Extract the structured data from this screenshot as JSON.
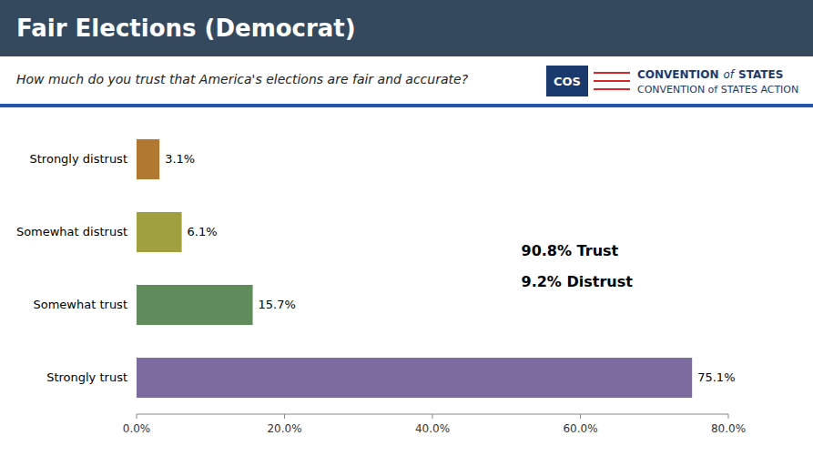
{
  "chart_data": {
    "type": "bar",
    "orientation": "horizontal",
    "title": "Fair Elections (Democrat)",
    "subtitle": "How much do you trust that America's elections are fair and accurate?",
    "categories": [
      "Strongly trust",
      "Somewhat trust",
      "Somewhat distrust",
      "Strongly distrust"
    ],
    "values": [
      75.1,
      15.7,
      6.1,
      3.1
    ],
    "value_labels": [
      "75.1%",
      "15.7%",
      "6.1%",
      "3.1%"
    ],
    "colors": [
      "#7b6b9e",
      "#5f8c5a",
      "#a0a040",
      "#b07830"
    ],
    "data_labels": true,
    "annotations": [
      "90.8% Trust",
      "9.2% Distrust",
      "COS",
      "CONVENTION",
      "of",
      "STATES",
      "CONVENTION of STATES ACTION"
    ],
    "xlim": [
      0,
      80
    ],
    "xticks": [
      {
        "value": 0,
        "label": "0.0%"
      },
      {
        "value": 20,
        "label": "20.0%"
      },
      {
        "value": 40,
        "label": "40.0%"
      },
      {
        "value": 60,
        "label": "60.0%"
      },
      {
        "value": 80,
        "label": "80.0%"
      }
    ],
    "grid": false
  }
}
